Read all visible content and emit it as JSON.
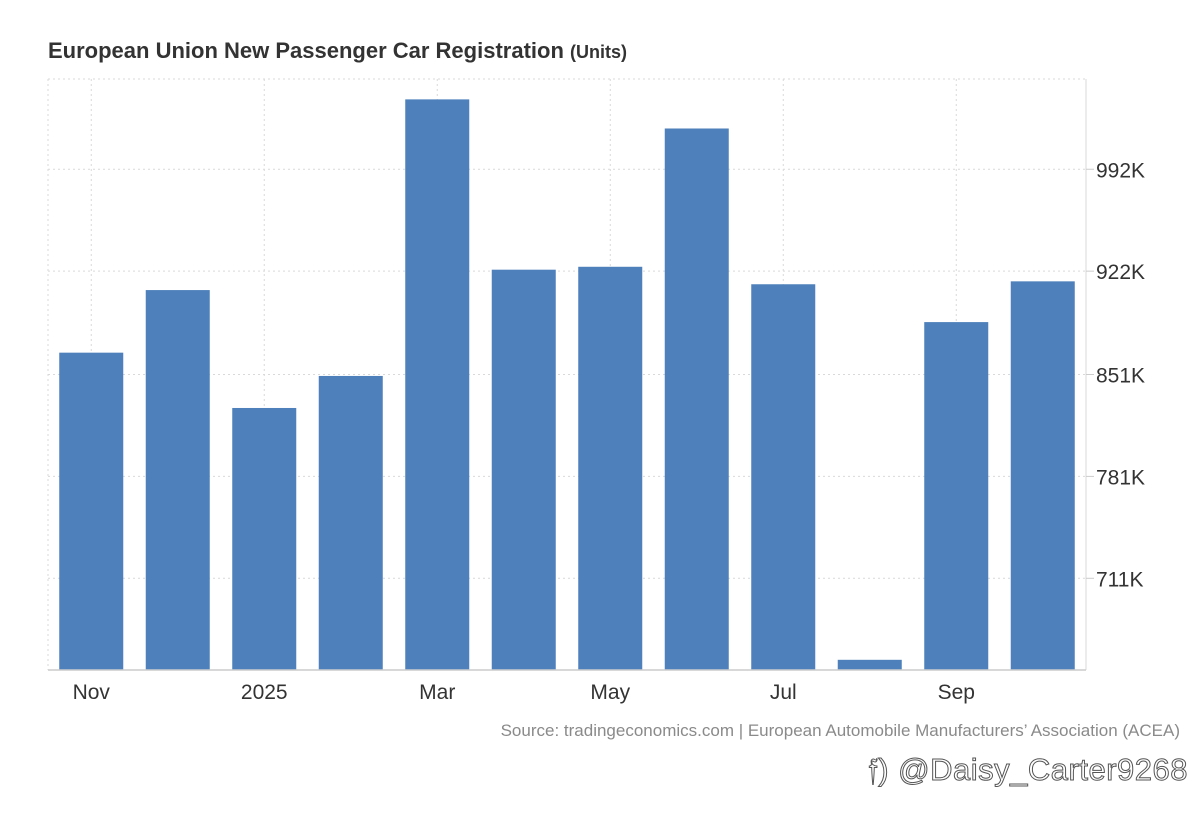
{
  "chart_data": {
    "type": "bar",
    "title": "European Union New Passenger Car Registration",
    "units": "(Units)",
    "categories": [
      "Nov 2024",
      "Dec 2024",
      "Jan 2025",
      "Feb 2025",
      "Mar 2025",
      "Apr 2025",
      "May 2025",
      "Jun 2025",
      "Jul 2025",
      "Aug 2025",
      "Sep 2025",
      "Oct 2025"
    ],
    "values": [
      866000,
      909000,
      828000,
      850000,
      1040000,
      923000,
      925000,
      1020000,
      913000,
      655000,
      887000,
      915000
    ],
    "x_tick_labels": [
      {
        "label": "Nov",
        "index": 0
      },
      {
        "label": "2025",
        "index": 2
      },
      {
        "label": "Mar",
        "index": 4
      },
      {
        "label": "May",
        "index": 6
      },
      {
        "label": "Jul",
        "index": 8
      },
      {
        "label": "Sep",
        "index": 10
      }
    ],
    "y_ticks": [
      {
        "label": "711K",
        "value": 711000
      },
      {
        "label": "781K",
        "value": 781000
      },
      {
        "label": "851K",
        "value": 851000
      },
      {
        "label": "922K",
        "value": 922000
      },
      {
        "label": "992K",
        "value": 992000
      }
    ],
    "ylim": [
      648000,
      1054000
    ],
    "xlabel": "",
    "ylabel": "",
    "grid": true,
    "y_axis_position": "right",
    "bar_color": "#4e80bb"
  },
  "source": "Source: tradingeconomics.com | European Automobile Manufacturers’ Association (ACEA)",
  "watermark": "𝔣) @Daisy_Carter9268"
}
